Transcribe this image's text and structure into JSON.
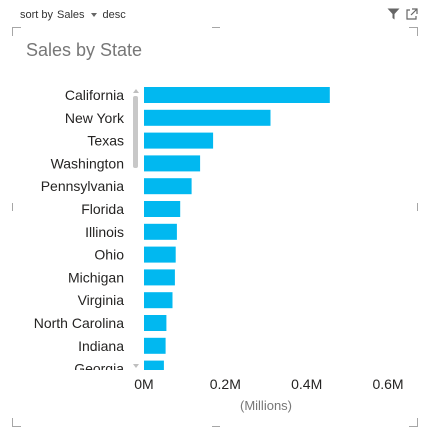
{
  "sort": {
    "label": "sort by",
    "field": "Sales",
    "order": "desc"
  },
  "toolbar": {
    "filter_icon": "filter-icon",
    "focus_icon": "focus-mode-icon"
  },
  "colors": {
    "bar": "#01B8F0",
    "label": "#252423",
    "axis_label": "#777777",
    "scrollbar": "#c8c8c8"
  },
  "chart_data": {
    "type": "bar",
    "orientation": "horizontal",
    "title": "Sales by State",
    "categories": [
      "California",
      "New York",
      "Texas",
      "Washington",
      "Pennsylvania",
      "Florida",
      "Illinois",
      "Ohio",
      "Michigan",
      "Virginia",
      "North Carolina",
      "Indiana",
      "Georgia"
    ],
    "values": [
      0.457,
      0.311,
      0.17,
      0.138,
      0.117,
      0.089,
      0.081,
      0.078,
      0.076,
      0.07,
      0.055,
      0.053,
      0.049
    ],
    "x_ticks": [
      "0M",
      "0.2M",
      "0.4M",
      "0.6M"
    ],
    "xlim": [
      0,
      0.6
    ],
    "xlabel": "(Millions)",
    "grid": false,
    "legend": "none"
  }
}
